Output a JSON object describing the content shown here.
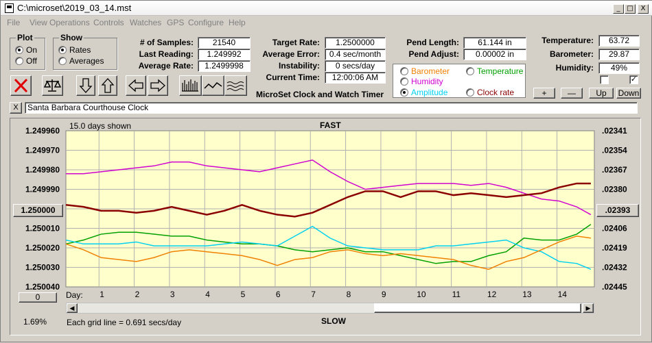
{
  "window": {
    "title": "C:\\microset\\2019_03_14.mst",
    "min_label": "_",
    "max_label": "□",
    "close_label": "X"
  },
  "menu": [
    "File",
    "View",
    "Operations",
    "Controls",
    "Watches",
    "GPS",
    "Configure",
    "Help"
  ],
  "plot_group": {
    "title": "Plot",
    "on_label": "On",
    "off_label": "Off",
    "selected": "On"
  },
  "show_group": {
    "title": "Show",
    "rates_label": "Rates",
    "averages_label": "Averages",
    "selected": "Rates"
  },
  "stats": {
    "samples_label": "# of Samples:",
    "samples": "21540",
    "last_reading_label": "Last Reading:",
    "last_reading": "1.249992",
    "average_rate_label": "Average Rate:",
    "average_rate": "1.2499998",
    "target_rate_label": "Target Rate:",
    "target_rate": "1.2500000",
    "average_error_label": "Average Error:",
    "average_error": "0.4 sec/month",
    "instability_label": "Instability:",
    "instability": "0 secs/day",
    "current_time_label": "Current Time:",
    "current_time": "12:00:06 AM",
    "pend_length_label": "Pend Length:",
    "pend_length": "61.144 in",
    "pend_adjust_label": "Pend Adjust:",
    "pend_adjust": "0.00002 in",
    "temperature_label": "Temperature:",
    "temperature": "63.72",
    "barometer_label": "Barometer:",
    "barometer": "29.87",
    "humidity_label": "Humidity:",
    "humidity": "49%"
  },
  "app_caption": "MicroSet Clock and Watch Timer",
  "series_selector": {
    "barometer": {
      "label": "Barometer",
      "color": "#f08000"
    },
    "temperature": {
      "label": "Temperature",
      "color": "#00a000"
    },
    "humidity": {
      "label": "Humidity",
      "color": "#d000d0"
    },
    "amplitude": {
      "label": "Amplitude",
      "color": "#00d0f0"
    },
    "clock_rate": {
      "label": "Clock rate",
      "color": "#8b0000"
    },
    "selected": "Amplitude"
  },
  "adjust_buttons": {
    "plus": "+",
    "minus": "—",
    "up": "Up",
    "down": "Down"
  },
  "clock_name": "Santa Barbara Courthouse Clock",
  "clear_label": "X",
  "chart_labels": {
    "days_shown": "15.0 days shown",
    "fast": "FAST",
    "slow": "SLOW",
    "day_label": "Day:",
    "grid_note": "Each grid line = 0.691 secs/day",
    "percent": "1.69%",
    "center_button": "1.250000",
    "right_button": ".02393",
    "zero_button": "0"
  },
  "chart_data": {
    "type": "line",
    "x": [
      0,
      0.5,
      1,
      1.5,
      2,
      2.5,
      3,
      3.5,
      4,
      4.5,
      5,
      5.5,
      6,
      6.5,
      7,
      7.5,
      8,
      8.5,
      9,
      9.5,
      10,
      10.5,
      11,
      11.5,
      12,
      12.5,
      13,
      13.5,
      14,
      14.5,
      14.9
    ],
    "x_ticks": [
      "1",
      "2",
      "3",
      "4",
      "5",
      "6",
      "7",
      "8",
      "9",
      "10",
      "11",
      "12",
      "13",
      "14"
    ],
    "left_ticks": [
      "1.249960",
      "1.249970",
      "1.249980",
      "1.249990",
      "1.250000",
      "1.250010",
      "1.250020",
      "1.250030",
      "1.250040"
    ],
    "right_ticks": [
      ".02341",
      ".02354",
      ".02367",
      ".02380",
      ".02393",
      ".02406",
      ".02419",
      ".02432",
      ".02445"
    ],
    "ylim": [
      1.24996,
      1.25004
    ],
    "series": [
      {
        "color": "#d000d0",
        "values": [
          1.249982,
          1.249982,
          1.249981,
          1.24998,
          1.249979,
          1.249978,
          1.249976,
          1.249976,
          1.249978,
          1.249979,
          1.24998,
          1.249981,
          1.249979,
          1.249977,
          1.249975,
          1.249981,
          1.249986,
          1.24999,
          1.249989,
          1.249988,
          1.249987,
          1.249987,
          1.249987,
          1.249988,
          1.249987,
          1.249989,
          1.249992,
          1.249995,
          1.249996,
          1.249999,
          1.250003
        ]
      },
      {
        "color": "#8b0000",
        "values": [
          1.249998,
          1.249999,
          1.250001,
          1.250001,
          1.250002,
          1.250001,
          1.249999,
          1.250001,
          1.250003,
          1.250001,
          1.249998,
          1.250001,
          1.250003,
          1.250004,
          1.250002,
          1.249998,
          1.249994,
          1.249991,
          1.249991,
          1.249994,
          1.249991,
          1.249991,
          1.249993,
          1.249992,
          1.249993,
          1.249994,
          1.249993,
          1.249992,
          1.249989,
          1.249987,
          1.249987
        ]
      },
      {
        "color": "#00a000",
        "values": [
          1.250018,
          1.250016,
          1.250013,
          1.250012,
          1.250012,
          1.250013,
          1.250014,
          1.250014,
          1.250016,
          1.250017,
          1.250018,
          1.250018,
          1.250019,
          1.250021,
          1.250022,
          1.250021,
          1.25002,
          1.250022,
          1.250022,
          1.250024,
          1.250026,
          1.250028,
          1.250027,
          1.250027,
          1.250024,
          1.250022,
          1.250015,
          1.250016,
          1.250016,
          1.250013,
          1.250008
        ]
      },
      {
        "color": "#00d0f0",
        "values": [
          1.250016,
          1.250018,
          1.250018,
          1.250018,
          1.250017,
          1.250019,
          1.250019,
          1.250019,
          1.250019,
          1.250018,
          1.250017,
          1.250018,
          1.250019,
          1.250014,
          1.250009,
          1.250015,
          1.250019,
          1.25002,
          1.250021,
          1.250021,
          1.250021,
          1.250019,
          1.250019,
          1.250018,
          1.250017,
          1.250016,
          1.25002,
          1.250022,
          1.250027,
          1.250028,
          1.250031
        ]
      },
      {
        "color": "#f08000",
        "values": [
          1.250018,
          1.250021,
          1.250025,
          1.250026,
          1.250027,
          1.250025,
          1.250022,
          1.250021,
          1.250022,
          1.250023,
          1.250024,
          1.250026,
          1.250029,
          1.250026,
          1.250025,
          1.250022,
          1.250021,
          1.250023,
          1.250024,
          1.250023,
          1.250024,
          1.250025,
          1.250026,
          1.250029,
          1.250031,
          1.250027,
          1.250025,
          1.250021,
          1.250017,
          1.250014,
          1.250015
        ]
      }
    ]
  }
}
